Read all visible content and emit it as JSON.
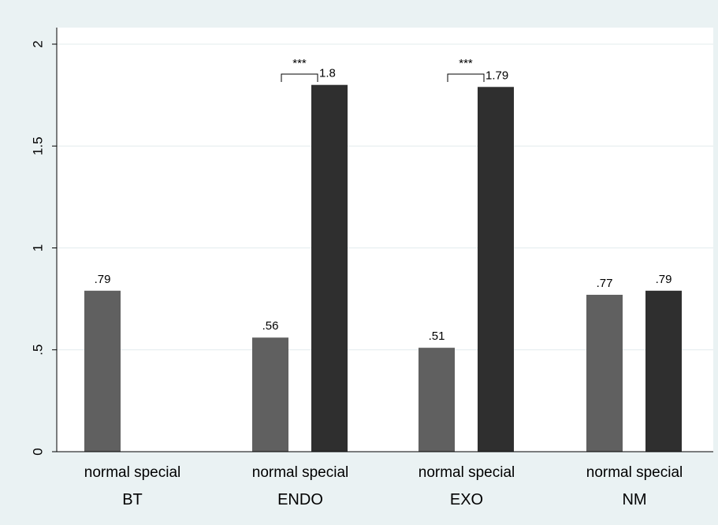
{
  "chart_data": {
    "type": "bar",
    "title": "",
    "xlabel": "",
    "ylabel": "",
    "ylim": [
      0,
      2
    ],
    "yticks": [
      0,
      0.5,
      1,
      1.5,
      2
    ],
    "ytick_labels": [
      "0",
      ".5",
      "1",
      "1.5",
      "2"
    ],
    "grid": true,
    "legend": "none",
    "groups": [
      "BT",
      "ENDO",
      "EXO",
      "NM"
    ],
    "subcategories": [
      "normal",
      "special"
    ],
    "series": [
      {
        "name": "normal",
        "color": "#606060",
        "values": [
          0.79,
          0.56,
          0.51,
          0.77
        ],
        "labels": [
          ".79",
          ".56",
          ".51",
          ".77"
        ]
      },
      {
        "name": "special",
        "color": "#2f2f2f",
        "values": [
          null,
          1.8,
          1.79,
          0.79
        ],
        "labels": [
          "",
          "1.8",
          "1.79",
          ".79"
        ]
      }
    ],
    "significance": [
      {
        "group": "ENDO",
        "label": "***"
      },
      {
        "group": "EXO",
        "label": "***"
      }
    ]
  },
  "colors": {
    "page_background": "#eaf2f3",
    "plot_background": "#ffffff",
    "grid": "#e3ecee"
  }
}
